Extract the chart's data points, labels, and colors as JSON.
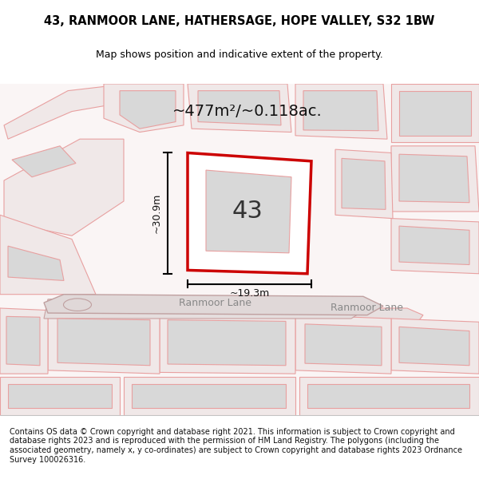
{
  "title_line1": "43, RANMOOR LANE, HATHERSAGE, HOPE VALLEY, S32 1BW",
  "title_line2": "Map shows position and indicative extent of the property.",
  "area_label": "~477m²/~0.118ac.",
  "plot_number": "43",
  "width_label": "~19.3m",
  "height_label": "~30.9m",
  "street_label1": "Ranmoor Lane",
  "street_label2": "Ranmoor Lane",
  "footer_text": "Contains OS data © Crown copyright and database right 2021. This information is subject to Crown copyright and database rights 2023 and is reproduced with the permission of HM Land Registry. The polygons (including the associated geometry, namely x, y co-ordinates) are subject to Crown copyright and database rights 2023 Ordnance Survey 100026316.",
  "bg_color": "#f5f0f0",
  "map_bg": "#ffffff",
  "plot_outline_color": "#cc0000",
  "other_outlines_color": "#e8a0a0",
  "building_fill": "#d8d8d8",
  "road_fill": "#e8e0e0",
  "title_fontsize": 10,
  "subtitle_fontsize": 9
}
